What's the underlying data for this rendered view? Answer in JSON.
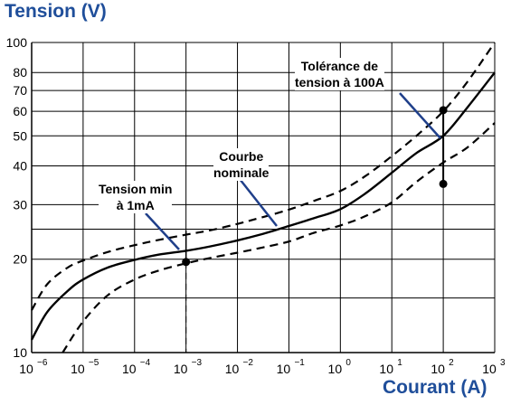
{
  "chart_data": {
    "type": "line",
    "ylabel": "Tension (V)",
    "xlabel": "Courant (A)",
    "x_scale": "log",
    "y_scale": "log",
    "xlim": [
      1e-06,
      1000
    ],
    "ylim": [
      10,
      100
    ],
    "x_ticks": [
      {
        "value": 1e-06,
        "base": "10",
        "exp": "−6"
      },
      {
        "value": 1e-05,
        "base": "10",
        "exp": "−5"
      },
      {
        "value": 0.0001,
        "base": "10",
        "exp": "−4"
      },
      {
        "value": 0.001,
        "base": "10",
        "exp": "−3"
      },
      {
        "value": 0.01,
        "base": "10",
        "exp": "−2"
      },
      {
        "value": 0.1,
        "base": "10",
        "exp": "−1"
      },
      {
        "value": 1,
        "base": "10",
        "exp": "0"
      },
      {
        "value": 10,
        "base": "10",
        "exp": "1"
      },
      {
        "value": 100,
        "base": "10",
        "exp": "2"
      },
      {
        "value": 1000,
        "base": "10",
        "exp": "3"
      }
    ],
    "y_ticks": [
      {
        "value": 10,
        "label": "10"
      },
      {
        "value": 20,
        "label": "20"
      },
      {
        "value": 30,
        "label": "30"
      },
      {
        "value": 40,
        "label": "40"
      },
      {
        "value": 50,
        "label": "50"
      },
      {
        "value": 60,
        "label": "60"
      },
      {
        "value": 70,
        "label": "70"
      },
      {
        "value": 80,
        "label": "80"
      },
      {
        "value": 100,
        "label": "100"
      }
    ],
    "y_grid_extra": [
      25,
      15
    ],
    "grid": true,
    "series": [
      {
        "style": "solid",
        "points": [
          [
            1e-06,
            11
          ],
          [
            2e-06,
            13.5
          ],
          [
            5e-06,
            15.8
          ],
          [
            1e-05,
            17.2
          ],
          [
            3e-05,
            18.8
          ],
          [
            0.0001,
            19.9
          ],
          [
            0.0003,
            20.7
          ],
          [
            0.001,
            21.3
          ],
          [
            0.003,
            22
          ],
          [
            0.01,
            23
          ],
          [
            0.03,
            24.1
          ],
          [
            0.1,
            25.6
          ],
          [
            0.3,
            27.1
          ],
          [
            1,
            29
          ],
          [
            3,
            32.5
          ],
          [
            10,
            38
          ],
          [
            30,
            44
          ],
          [
            100,
            50
          ],
          [
            300,
            62
          ],
          [
            1000,
            80
          ]
        ]
      },
      {
        "style": "dashed",
        "points": [
          [
            1e-06,
            13.7
          ],
          [
            2e-06,
            16.6
          ],
          [
            5e-06,
            18.8
          ],
          [
            1e-05,
            19.8
          ],
          [
            3e-05,
            21.1
          ],
          [
            0.0001,
            22.2
          ],
          [
            0.0003,
            23.1
          ],
          [
            0.001,
            24
          ],
          [
            0.003,
            24.8
          ],
          [
            0.01,
            26
          ],
          [
            0.03,
            27.3
          ],
          [
            0.1,
            28.9
          ],
          [
            0.3,
            30.8
          ],
          [
            1,
            33.2
          ],
          [
            3,
            37
          ],
          [
            10,
            43
          ],
          [
            30,
            50
          ],
          [
            100,
            60
          ],
          [
            300,
            75
          ],
          [
            1000,
            100
          ]
        ]
      },
      {
        "style": "dashed",
        "points": [
          [
            4e-06,
            10
          ],
          [
            1e-05,
            12.6
          ],
          [
            3e-05,
            15.3
          ],
          [
            0.0001,
            17.2
          ],
          [
            0.0003,
            18.4
          ],
          [
            0.001,
            19.4
          ],
          [
            0.003,
            20.2
          ],
          [
            0.01,
            21
          ],
          [
            0.03,
            21.8
          ],
          [
            0.1,
            22.8
          ],
          [
            0.3,
            24.3
          ],
          [
            1,
            25.7
          ],
          [
            3,
            27.5
          ],
          [
            10,
            30.5
          ],
          [
            30,
            35.5
          ],
          [
            100,
            41
          ],
          [
            300,
            46
          ],
          [
            1000,
            55
          ]
        ]
      }
    ],
    "tension_min_marker": {
      "x": 0.001,
      "y_low": 19.6,
      "y_high": 24.7
    },
    "tolerance_marker": {
      "x": 100,
      "y_low": 35,
      "y_high": 60.5
    },
    "annotations": [
      {
        "lines": [
          "Tolérance de",
          "tension à 100A"
        ]
      },
      {
        "lines": [
          "Courbe",
          "nominale"
        ]
      },
      {
        "lines": [
          "Tension min",
          "à 1mA"
        ]
      }
    ]
  }
}
